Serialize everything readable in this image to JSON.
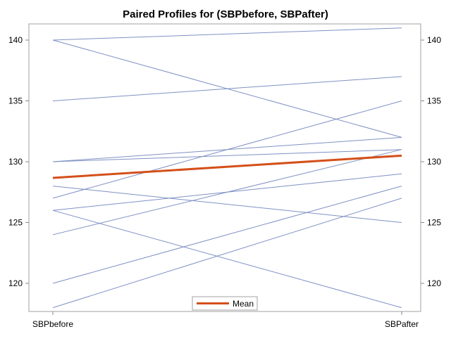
{
  "chart_data": {
    "type": "line",
    "title": "Paired Profiles for (SBPbefore, SBPafter)",
    "categories": [
      "SBPbefore",
      "SBPafter"
    ],
    "ylim": [
      118,
      141
    ],
    "yticks": [
      120,
      125,
      130,
      135,
      140
    ],
    "pairs": [
      [
        140,
        141
      ],
      [
        140,
        132
      ],
      [
        135,
        137
      ],
      [
        130,
        132
      ],
      [
        130,
        131
      ],
      [
        128,
        125
      ],
      [
        127,
        135
      ],
      [
        126,
        129
      ],
      [
        126,
        118
      ],
      [
        124,
        131
      ],
      [
        120,
        128
      ],
      [
        118,
        127
      ]
    ],
    "mean": {
      "name": "Mean",
      "values": [
        128.67,
        130.5
      ]
    },
    "legend": {
      "label": "Mean",
      "position": "bottom-center"
    },
    "colors": {
      "profile": "#7f91c4",
      "mean": "#d4501a",
      "frame": "#a0a0a0"
    }
  }
}
